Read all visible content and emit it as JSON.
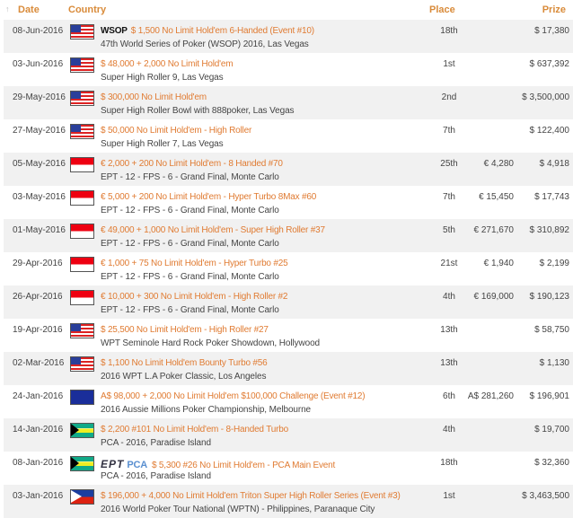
{
  "header": {
    "date": "Date",
    "country": "Country",
    "place": "Place",
    "prize": "Prize"
  },
  "rows": [
    {
      "date": "08-Jun-2016",
      "flag": "us",
      "logo": "WSOP",
      "event": "$ 1,500 No Limit Hold'em 6-Handed (Event #10)",
      "series": "47th World Series of Poker (WSOP) 2016, Las Vegas",
      "place": "18th",
      "local": "",
      "prize": "$ 17,380"
    },
    {
      "date": "03-Jun-2016",
      "flag": "us",
      "event": "$ 48,000 + 2,000 No Limit Hold'em",
      "series": "Super High Roller 9, Las Vegas",
      "place": "1st",
      "local": "",
      "prize": "$ 637,392"
    },
    {
      "date": "29-May-2016",
      "flag": "us",
      "event": "$ 300,000 No Limit Hold'em",
      "series": "Super High Roller Bowl with 888poker, Las Vegas",
      "place": "2nd",
      "local": "",
      "prize": "$ 3,500,000"
    },
    {
      "date": "27-May-2016",
      "flag": "us",
      "event": "$ 50,000 No Limit Hold'em - High Roller",
      "series": "Super High Roller 7, Las Vegas",
      "place": "7th",
      "local": "",
      "prize": "$ 122,400"
    },
    {
      "date": "05-May-2016",
      "flag": "mc",
      "event": "€ 2,000 + 200 No Limit Hold'em - 8 Handed #70",
      "series": "EPT - 12 - FPS - 6 - Grand Final, Monte Carlo",
      "place": "25th",
      "local": "€ 4,280",
      "prize": "$ 4,918"
    },
    {
      "date": "03-May-2016",
      "flag": "mc",
      "event": "€ 5,000 + 200 No Limit Hold'em - Hyper Turbo 8Max #60",
      "series": "EPT - 12 - FPS - 6 - Grand Final, Monte Carlo",
      "place": "7th",
      "local": "€ 15,450",
      "prize": "$ 17,743"
    },
    {
      "date": "01-May-2016",
      "flag": "mc",
      "event": "€ 49,000 + 1,000 No Limit Hold'em - Super High Roller #37",
      "series": "EPT - 12 - FPS - 6 - Grand Final, Monte Carlo",
      "place": "5th",
      "local": "€ 271,670",
      "prize": "$ 310,892"
    },
    {
      "date": "29-Apr-2016",
      "flag": "mc",
      "event": "€ 1,000 + 75 No Limit Hold'em - Hyper Turbo #25",
      "series": "EPT - 12 - FPS - 6 - Grand Final, Monte Carlo",
      "place": "21st",
      "local": "€ 1,940",
      "prize": "$ 2,199"
    },
    {
      "date": "26-Apr-2016",
      "flag": "mc",
      "event": "€ 10,000 + 300 No Limit Hold'em - High Roller #2",
      "series": "EPT - 12 - FPS - 6 - Grand Final, Monte Carlo",
      "place": "4th",
      "local": "€ 169,000",
      "prize": "$ 190,123"
    },
    {
      "date": "19-Apr-2016",
      "flag": "us",
      "event": "$ 25,500 No Limit Hold'em - High Roller #27",
      "series": "WPT Seminole Hard Rock Poker Showdown, Hollywood",
      "place": "13th",
      "local": "",
      "prize": "$ 58,750"
    },
    {
      "date": "02-Mar-2016",
      "flag": "us",
      "event": "$ 1,100 No Limit Hold'em Bounty Turbo #56",
      "series": "2016 WPT L.A Poker Classic, Los Angeles",
      "place": "13th",
      "local": "",
      "prize": "$ 1,130"
    },
    {
      "date": "24-Jan-2016",
      "flag": "au",
      "event": "A$ 98,000 + 2,000 No Limit Hold'em $100,000 Challenge (Event #12)",
      "series": "2016 Aussie Millions Poker Championship, Melbourne",
      "place": "6th",
      "local": "A$ 281,260",
      "prize": "$ 196,901"
    },
    {
      "date": "14-Jan-2016",
      "flag": "bs",
      "event": "$ 2,200 #101 No Limit Hold'em - 8-Handed Turbo",
      "series": "PCA - 2016, Paradise Island",
      "place": "4th",
      "local": "",
      "prize": "$ 19,700"
    },
    {
      "date": "08-Jan-2016",
      "flag": "bs",
      "logo_ept": "EPT",
      "logo_pca": "PCA",
      "event": "$ 5,300 #26 No Limit Hold'em - PCA Main Event",
      "series": "PCA - 2016, Paradise Island",
      "place": "18th",
      "local": "",
      "prize": "$ 32,360"
    },
    {
      "date": "03-Jan-2016",
      "flag": "ph",
      "event": "$ 196,000 + 4,000 No Limit Hold'em Triton Super High Roller Series (Event #3)",
      "series": "2016 World Poker Tour National (WPTN) - Philippines, Paranaque City",
      "place": "1st",
      "local": "",
      "prize": "$ 3,463,500"
    }
  ],
  "colors": {
    "link": "#e07b32",
    "header": "#d98b3a",
    "alt_row": "#f1f1f1"
  }
}
